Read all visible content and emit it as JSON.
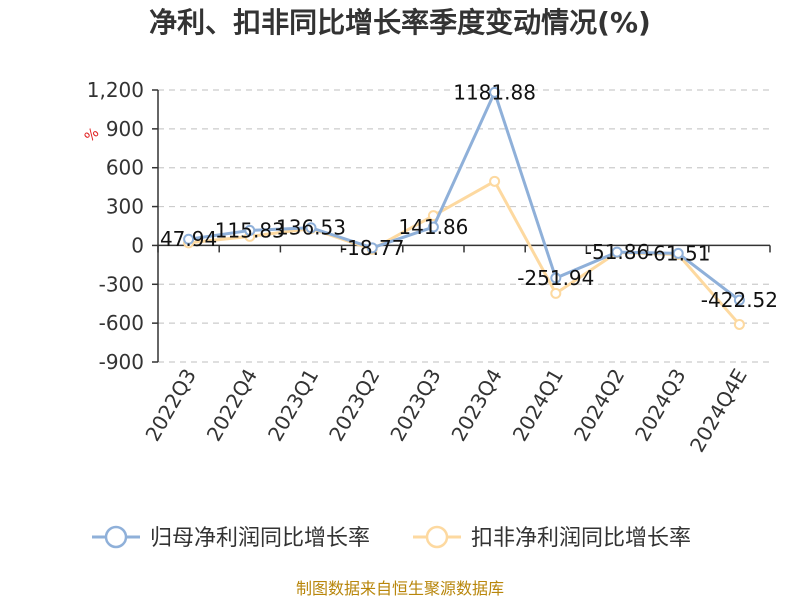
{
  "title": "净利、扣非同比增长率季度变动情况(%)",
  "source": "制图数据来自恒生聚源数据库",
  "chart_data": {
    "type": "line",
    "title": "净利、扣非同比增长率季度变动情况(%)",
    "ylabel": "%",
    "xlabel": "",
    "categories": [
      "2022Q3",
      "2022Q4",
      "2023Q1",
      "2023Q2",
      "2023Q3",
      "2023Q4",
      "2024Q1",
      "2024Q2",
      "2024Q3",
      "2024Q4E"
    ],
    "yticks": [
      1200,
      900,
      600,
      300,
      0,
      -300,
      -600,
      -900
    ],
    "ytick_labels": [
      "1,200",
      "900",
      "600",
      "300",
      "0",
      "-300",
      "-600",
      "-900"
    ],
    "ylim": [
      -900,
      1200
    ],
    "grid": true,
    "legend_position": "bottom",
    "series": [
      {
        "name": "归母净利润同比增长率",
        "color": "#8fb0d9",
        "values": [
          47.94,
          115.83,
          136.53,
          -18.77,
          141.86,
          1181.88,
          -251.94,
          -51.86,
          -61.51,
          -422.52
        ],
        "labels": [
          "47.94",
          "115.83",
          "136.53",
          "-18.77",
          "141.86",
          "1181.88",
          "-251.94",
          "-51.86",
          "-61.51",
          "-422.52"
        ]
      },
      {
        "name": "扣非净利润同比增长率",
        "color": "#fdd9a0",
        "values": [
          20,
          70,
          130,
          -30,
          230,
          495,
          -370,
          -55,
          -70,
          -610
        ]
      }
    ]
  }
}
